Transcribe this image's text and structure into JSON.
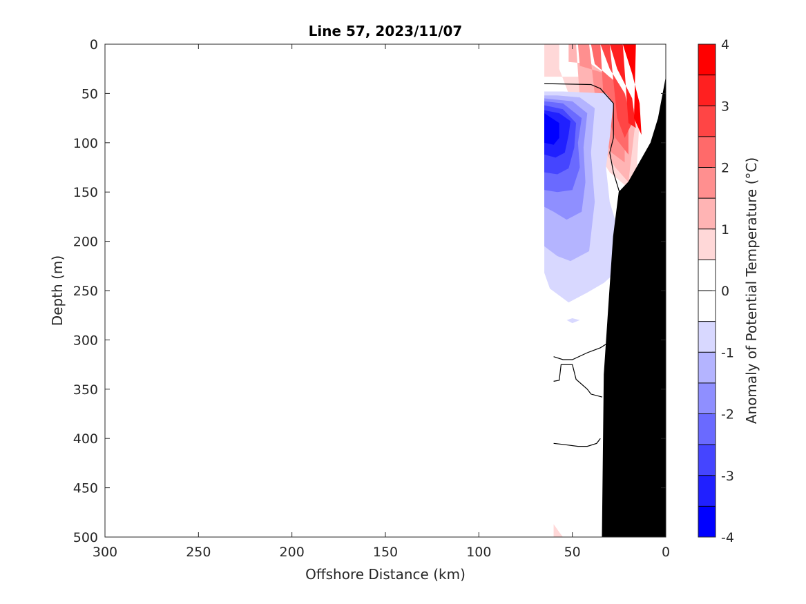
{
  "chart_data": {
    "type": "heatmap",
    "title": "Line 57, 2023/11/07",
    "xlabel": "Offshore Distance (km)",
    "ylabel": "Depth (m)",
    "colorbar_label": "Anomaly of Potential Temperature (°C)",
    "x_reversed": true,
    "y_reversed": true,
    "xlim": [
      0,
      300
    ],
    "ylim": [
      0,
      500
    ],
    "xticks": [
      "300",
      "250",
      "200",
      "150",
      "100",
      "50",
      "0"
    ],
    "xtick_values": [
      300,
      250,
      200,
      150,
      100,
      50,
      0
    ],
    "yticks": [
      "0",
      "50",
      "100",
      "150",
      "200",
      "250",
      "300",
      "350",
      "400",
      "450",
      "500"
    ],
    "ytick_values": [
      0,
      50,
      100,
      150,
      200,
      250,
      300,
      350,
      400,
      450,
      500
    ],
    "colorbar": {
      "ticks": [
        "-4",
        "-3",
        "-2",
        "-1",
        "0",
        "1",
        "2",
        "3",
        "4"
      ],
      "tick_values": [
        -4,
        -3,
        -2,
        -1,
        0,
        1,
        2,
        3,
        4
      ],
      "levels": [
        -4,
        -3.5,
        -3,
        -2.5,
        -2,
        -1.5,
        -1,
        -0.5,
        0,
        0.5,
        1,
        1.5,
        2,
        2.5,
        3,
        3.5,
        4
      ],
      "colors": [
        "#0000ff",
        "#2020ff",
        "#4545ff",
        "#6a6aff",
        "#8f8fff",
        "#b4b4ff",
        "#d8d8ff",
        "#ffffff",
        "#ffffff",
        "#ffd8d8",
        "#ffb4b4",
        "#ff8f8f",
        "#ff6a6a",
        "#ff4545",
        "#ff2020",
        "#ff0000"
      ]
    },
    "data_coverage": {
      "x_min_km": 0,
      "x_max_km": 65
    },
    "anomaly_regions": [
      {
        "level": 0.75,
        "polygon": [
          [
            65,
            0
          ],
          [
            65,
            33
          ],
          [
            35,
            33
          ],
          [
            25,
            40
          ],
          [
            14,
            75
          ],
          [
            16,
            140
          ],
          [
            20,
            146
          ],
          [
            30,
            130
          ],
          [
            40,
            100
          ],
          [
            50,
            60
          ],
          [
            57,
            25
          ],
          [
            57,
            0
          ]
        ]
      },
      {
        "level": 1.25,
        "polygon": [
          [
            52,
            0
          ],
          [
            52,
            18
          ],
          [
            40,
            20
          ],
          [
            25,
            40
          ],
          [
            16,
            75
          ],
          [
            20,
            140
          ],
          [
            27,
            125
          ],
          [
            37,
            95
          ],
          [
            46,
            55
          ],
          [
            48,
            0
          ]
        ]
      },
      {
        "level": 1.75,
        "polygon": [
          [
            47,
            0
          ],
          [
            46,
            22
          ],
          [
            32,
            30
          ],
          [
            22,
            60
          ],
          [
            22,
            120
          ],
          [
            29,
            110
          ],
          [
            36,
            85
          ],
          [
            41,
            0
          ]
        ]
      },
      {
        "level": 2.25,
        "polygon": [
          [
            40,
            0
          ],
          [
            38,
            20
          ],
          [
            26,
            40
          ],
          [
            20,
            80
          ],
          [
            20,
            112
          ],
          [
            27,
            95
          ],
          [
            33,
            65
          ],
          [
            35,
            0
          ]
        ]
      },
      {
        "level": 2.75,
        "polygon": [
          [
            35,
            0
          ],
          [
            30,
            25
          ],
          [
            22,
            50
          ],
          [
            18,
            80
          ],
          [
            22,
            95
          ],
          [
            26,
            75
          ],
          [
            30,
            0
          ]
        ]
      },
      {
        "level": 3.25,
        "polygon": [
          [
            30,
            0
          ],
          [
            26,
            25
          ],
          [
            18,
            55
          ],
          [
            16,
            85
          ],
          [
            20,
            80
          ],
          [
            23,
            0
          ]
        ]
      },
      {
        "level": 3.75,
        "polygon": [
          [
            23,
            0
          ],
          [
            18,
            30
          ],
          [
            14,
            60
          ],
          [
            13,
            92
          ],
          [
            17,
            75
          ],
          [
            16,
            0
          ]
        ]
      },
      {
        "level": -0.75,
        "polygon": [
          [
            65,
            48
          ],
          [
            65,
            232
          ],
          [
            62,
            248
          ],
          [
            52,
            262
          ],
          [
            42,
            252
          ],
          [
            33,
            242
          ],
          [
            26,
            230
          ],
          [
            26,
            185
          ],
          [
            30,
            160
          ],
          [
            32,
            125
          ],
          [
            30,
            95
          ],
          [
            28,
            60
          ],
          [
            32,
            50
          ],
          [
            55,
            48
          ]
        ]
      },
      {
        "level": -0.75,
        "polygon": [
          [
            53,
            280
          ],
          [
            50,
            278
          ],
          [
            46,
            280
          ],
          [
            50,
            283
          ]
        ]
      },
      {
        "level": -1.25,
        "polygon": [
          [
            65,
            52
          ],
          [
            65,
            205
          ],
          [
            58,
            215
          ],
          [
            51,
            220
          ],
          [
            41,
            210
          ],
          [
            38,
            160
          ],
          [
            40,
            110
          ],
          [
            38,
            65
          ],
          [
            46,
            54
          ],
          [
            58,
            52
          ]
        ]
      },
      {
        "level": -1.75,
        "polygon": [
          [
            65,
            55
          ],
          [
            65,
            165
          ],
          [
            60,
            170
          ],
          [
            53,
            178
          ],
          [
            45,
            170
          ],
          [
            43,
            140
          ],
          [
            44,
            105
          ],
          [
            42,
            70
          ],
          [
            50,
            58
          ]
        ]
      },
      {
        "level": -2.25,
        "polygon": [
          [
            65,
            58
          ],
          [
            65,
            148
          ],
          [
            58,
            150
          ],
          [
            50,
            148
          ],
          [
            46,
            125
          ],
          [
            47,
            100
          ],
          [
            45,
            75
          ],
          [
            55,
            60
          ]
        ]
      },
      {
        "level": -2.75,
        "polygon": [
          [
            65,
            62
          ],
          [
            65,
            130
          ],
          [
            58,
            132
          ],
          [
            52,
            126
          ],
          [
            49,
            105
          ],
          [
            48,
            80
          ],
          [
            55,
            66
          ]
        ]
      },
      {
        "level": -3.25,
        "polygon": [
          [
            65,
            67
          ],
          [
            65,
            112
          ],
          [
            59,
            115
          ],
          [
            54,
            110
          ],
          [
            52,
            92
          ],
          [
            51,
            78
          ],
          [
            57,
            70
          ]
        ]
      },
      {
        "level": -3.75,
        "polygon": [
          [
            65,
            70
          ],
          [
            65,
            100
          ],
          [
            60,
            102
          ],
          [
            57,
            95
          ],
          [
            57,
            80
          ]
        ]
      },
      {
        "level": 0.75,
        "polygon": [
          [
            60,
            487
          ],
          [
            60,
            500
          ],
          [
            55,
            500
          ],
          [
            57,
            495
          ]
        ]
      }
    ],
    "zero_contours": [
      [
        [
          65,
          40
        ],
        [
          40,
          41
        ],
        [
          35,
          45
        ],
        [
          28,
          60
        ],
        [
          28,
          95
        ],
        [
          30,
          110
        ],
        [
          28,
          130
        ],
        [
          24,
          155
        ],
        [
          21,
          165
        ]
      ],
      [
        [
          60,
          317
        ],
        [
          55,
          320
        ],
        [
          50,
          320
        ],
        [
          42,
          313
        ],
        [
          35,
          308
        ],
        [
          30,
          302
        ]
      ],
      [
        [
          60,
          342
        ],
        [
          57,
          341
        ],
        [
          56,
          325
        ],
        [
          50,
          325
        ],
        [
          48,
          340
        ],
        [
          42,
          350
        ],
        [
          40,
          355
        ],
        [
          34,
          358
        ]
      ],
      [
        [
          60,
          405
        ],
        [
          55,
          406
        ],
        [
          47,
          408
        ],
        [
          42,
          408
        ],
        [
          37,
          405
        ],
        [
          35,
          400
        ]
      ]
    ],
    "bathymetry": [
      [
        34,
        500
      ],
      [
        33,
        335
      ],
      [
        30,
        250
      ],
      [
        28,
        195
      ],
      [
        25,
        150
      ],
      [
        20,
        140
      ],
      [
        14,
        120
      ],
      [
        8,
        100
      ],
      [
        4,
        75
      ],
      [
        0,
        35
      ]
    ]
  }
}
